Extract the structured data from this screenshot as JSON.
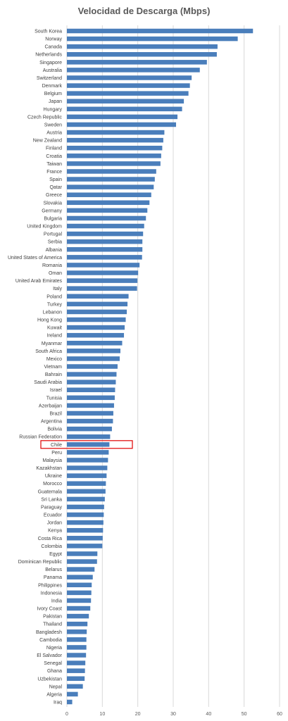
{
  "chart_data": {
    "type": "bar",
    "orientation": "horizontal",
    "title": "Velocidad de Descarga (Mbps)",
    "xlabel": "",
    "ylabel": "",
    "xlim": [
      0,
      60
    ],
    "x_ticks": [
      "0",
      "10",
      "20",
      "30",
      "40",
      "50",
      "60"
    ],
    "grid": true,
    "bar_color": "#4a7ebb",
    "highlight": {
      "category": "Chile",
      "color": "#e00000"
    },
    "categories": [
      "South Korea",
      "Norway",
      "Canada",
      "Netherlands",
      "Singapore",
      "Australia",
      "Switzerland",
      "Denmark",
      "Belgium",
      "Japan",
      "Hungary",
      "Czech Republic",
      "Sweden",
      "Austria",
      "New Zealand",
      "Finland",
      "Croatia",
      "Taiwan",
      "France",
      "Spain",
      "Qatar",
      "Greece",
      "Slovakia",
      "Germany",
      "Bulgaria",
      "United Kingdom",
      "Portugal",
      "Serbia",
      "Albania",
      "United States of America",
      "Romania",
      "Oman",
      "United Arab Emirates",
      "Italy",
      "Poland",
      "Turkey",
      "Lebanon",
      "Hong Kong",
      "Kuwait",
      "Ireland",
      "Myanmar",
      "South Africa",
      "Mexico",
      "Vietnam",
      "Bahrain",
      "Saudi Arabia",
      "Israel",
      "Tunisia",
      "Azerbaijan",
      "Brazil",
      "Argentina",
      "Bolivia",
      "Russian Federation",
      "Chile",
      "Peru",
      "Malaysia",
      "Kazakhstan",
      "Ukraine",
      "Morocco",
      "Guatemala",
      "Sri Lanka",
      "Paraguay",
      "Ecuador",
      "Jordan",
      "Kenya",
      "Costa Rica",
      "Colombia",
      "Egypt",
      "Dominican Republic",
      "Belarus",
      "Panama",
      "Philippines",
      "Indonesia",
      "India",
      "Ivory Coast",
      "Pakistan",
      "Thailand",
      "Bangladesh",
      "Cambodia",
      "Nigeria",
      "El Salvador",
      "Senegal",
      "Ghana",
      "Uzbekistan",
      "Nepal",
      "Algeria",
      "Iraq"
    ],
    "values": [
      52.5,
      48.2,
      42.5,
      42.3,
      39.5,
      37.5,
      35.2,
      34.7,
      34.3,
      33.0,
      32.5,
      31.2,
      30.8,
      27.5,
      27.2,
      26.9,
      26.6,
      26.4,
      25.2,
      24.8,
      24.5,
      23.8,
      23.3,
      22.7,
      22.3,
      21.8,
      21.5,
      21.3,
      21.3,
      21.2,
      20.5,
      20.1,
      19.9,
      19.8,
      17.4,
      17.1,
      16.9,
      16.6,
      16.3,
      16.1,
      15.6,
      15.1,
      14.9,
      14.3,
      14.0,
      13.8,
      13.6,
      13.5,
      13.3,
      13.1,
      13.0,
      12.7,
      12.2,
      12.0,
      11.8,
      11.6,
      11.4,
      11.2,
      11.0,
      10.9,
      10.7,
      10.5,
      10.4,
      10.3,
      10.2,
      10.1,
      10.0,
      8.6,
      8.5,
      7.8,
      7.3,
      7.0,
      6.9,
      6.8,
      6.6,
      6.2,
      5.8,
      5.6,
      5.5,
      5.5,
      5.4,
      5.2,
      5.1,
      5.0,
      4.5,
      3.1,
      1.5
    ]
  }
}
